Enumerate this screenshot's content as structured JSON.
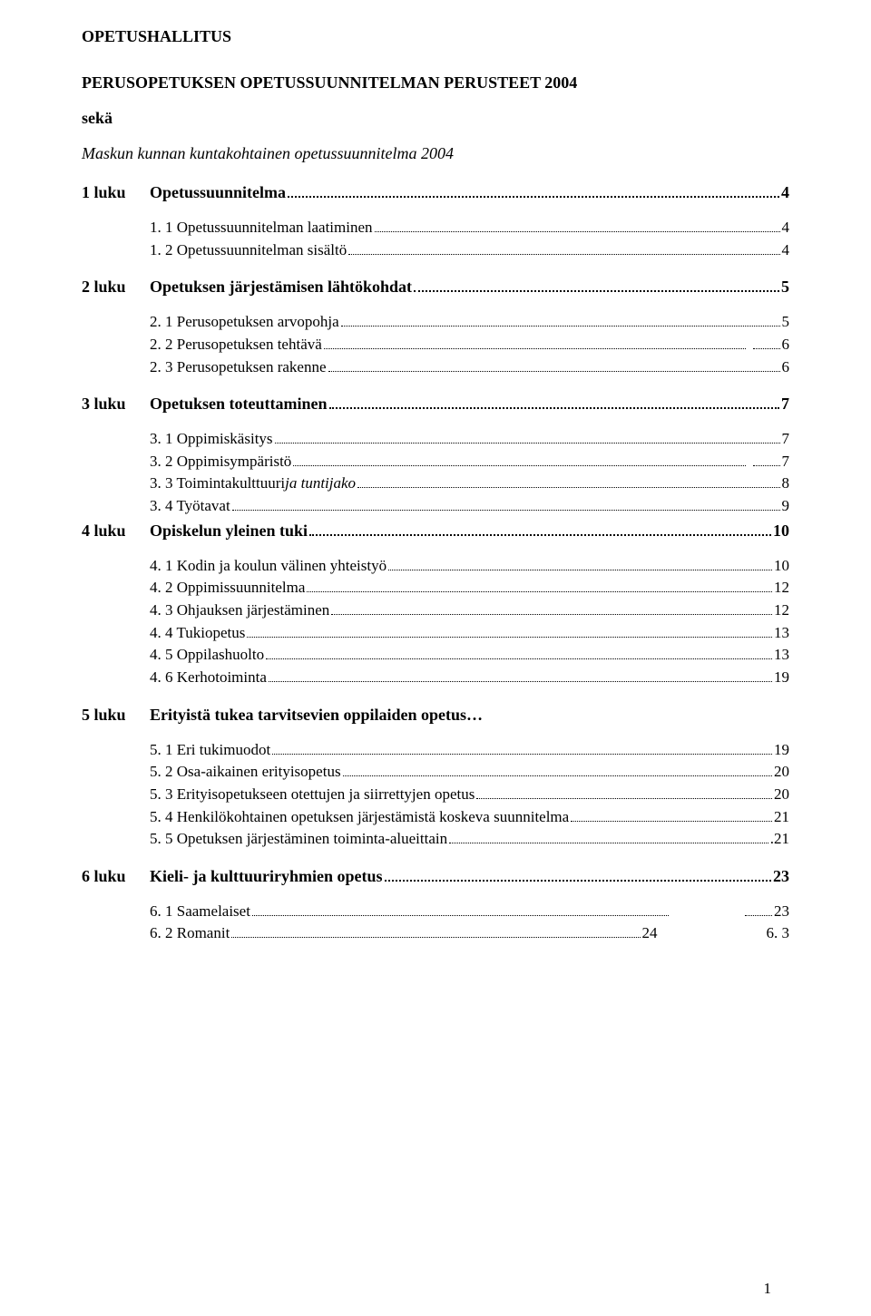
{
  "header": {
    "org": "OPETUSHALLITUS",
    "title": "PERUSOPETUKSEN OPETUSSUUNNITELMAN PERUSTEET 2004",
    "sek": "sekä",
    "italic": "Maskun kunnan kuntakohtainen opetussuunnitelma 2004"
  },
  "chapters": [
    {
      "num": "1 luku",
      "title": "Opetussuunnitelma",
      "page": "4",
      "subs": [
        {
          "label": "1. 1  Opetussuunnitelman laatiminen",
          "page": "4"
        },
        {
          "label": "1. 2  Opetussuunnitelman sisältö",
          "page": "4"
        }
      ]
    },
    {
      "num": "2 luku",
      "title": "Opetuksen järjestämisen lähtökohdat",
      "page": "5",
      "subs": [
        {
          "label": "2. 1  Perusopetuksen arvopohja",
          "page": "5"
        },
        {
          "label": "2. 2  Perusopetuksen tehtävä",
          "dots2": true,
          "page": "6"
        },
        {
          "label": "2. 3  Perusopetuksen rakenne",
          "page": "6"
        }
      ]
    },
    {
      "num": "3 luku",
      "title": "Opetuksen toteuttaminen",
      "page": "7",
      "subs": [
        {
          "label": "3. 1   Oppimiskäsitys",
          "page": "7"
        },
        {
          "label": "3. 2   Oppimisympäristö",
          "dots2": true,
          "page": "7"
        },
        {
          "label": "3. 3   Toimintakulttuuri",
          "italicSuffix": " ja tuntijako",
          "page": "8"
        },
        {
          "label": "3. 4   Työtavat",
          "page": "9"
        }
      ],
      "inlineChapter": {
        "num": "4 luku",
        "title": "Opiskelun yleinen tuki",
        "page": "10",
        "bold": true
      }
    },
    {
      "subsOnly": true,
      "subs": [
        {
          "label": "4. 1  Kodin ja koulun välinen yhteistyö",
          "page": "10"
        },
        {
          "label": "4. 2  Oppimissuunnitelma",
          "page": "12"
        },
        {
          "label": "4. 3  Ohjauksen järjestäminen",
          "page": "12"
        },
        {
          "label": "4. 4  Tukiopetus",
          "page": "13"
        },
        {
          "label": "4. 5  Oppilashuolto",
          "page": "13"
        },
        {
          "label": "4. 6  Kerhotoiminta",
          "page": "19"
        }
      ]
    },
    {
      "num": "5 luku",
      "title": "Erityistä tukea tarvitsevien oppilaiden opetus…",
      "noPage": true,
      "subs": [
        {
          "label": "5. 1  Eri tukimuodot",
          "page": "19"
        },
        {
          "label": "5. 2  Osa-aikainen erityisopetus",
          "page": "20"
        },
        {
          "label": "5. 3  Erityisopetukseen otettujen ja siirrettyjen opetus",
          "page": "20"
        },
        {
          "label": "5. 4  Henkilökohtainen opetuksen järjestämistä koskeva suunnitelma",
          "page": "21"
        },
        {
          "label": "5. 5  Opetuksen järjestäminen toiminta-alueittain",
          "page": "21",
          "dotsTrail": true
        }
      ]
    },
    {
      "num": "6 luku",
      "title": "Kieli- ja kulttuuriryhmien opetus",
      "page": "23",
      "subs": [
        {
          "label": "6. 1  Saamelaiset",
          "page": "23",
          "gapDots": true
        },
        {
          "label": "6. 2  Romanit",
          "page": "24",
          "trailing": "6.   3"
        }
      ]
    }
  ],
  "footerPage": "1"
}
